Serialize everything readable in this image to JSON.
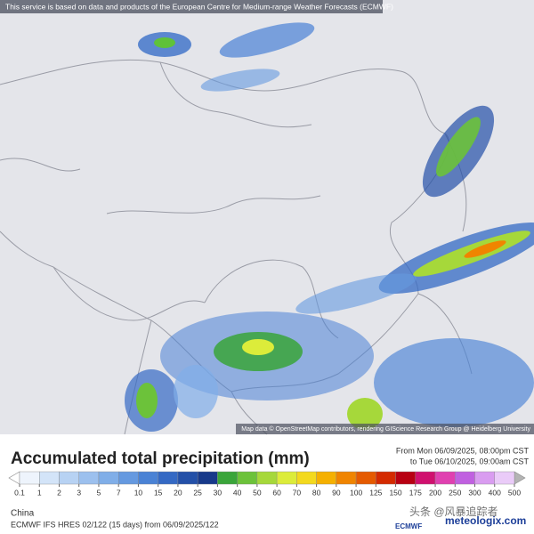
{
  "header": {
    "notice": "This service is based on data and products of the European Centre for Medium-range Weather Forecasts (ECMWF)"
  },
  "map": {
    "attribution": "Map data © OpenStreetMap contributors, rendering GIScience Research Group @ Heidelberg University"
  },
  "legend": {
    "title": "Accumulated total precipitation (mm)",
    "from": "From Mon 06/09/2025, 08:00pm CST",
    "to": "to Tue 06/10/2025, 09:00am CST",
    "ticks": [
      0.1,
      1,
      2,
      3,
      5,
      7,
      10,
      15,
      20,
      25,
      30,
      40,
      50,
      60,
      70,
      80,
      90,
      100,
      125,
      150,
      175,
      200,
      250,
      300,
      400,
      500
    ],
    "colors": [
      "#eef4fc",
      "#d3e4f8",
      "#b7d2f3",
      "#9cc0ee",
      "#80aee8",
      "#6599e0",
      "#4a82d5",
      "#3469c4",
      "#2350a8",
      "#17398a",
      "#3aa53a",
      "#6cc23a",
      "#a6d83a",
      "#dcec3a",
      "#f3d91e",
      "#f5b000",
      "#f08400",
      "#e55a00",
      "#d42a00",
      "#b80012",
      "#d0106e",
      "#e040b0",
      "#c060e0",
      "#d99cf0",
      "#eacbf8"
    ],
    "under_color": "#ffffff",
    "over_color": "#b4b4b4"
  },
  "footer": {
    "region": "China",
    "model": "ECMWF IFS HRES 02/122 (15 days) from 06/09/2025/122",
    "logo_ecmwf": "ECMWF",
    "logo_meteologix": "meteologix.com",
    "watermark": "头条 @风暴追踪者"
  }
}
